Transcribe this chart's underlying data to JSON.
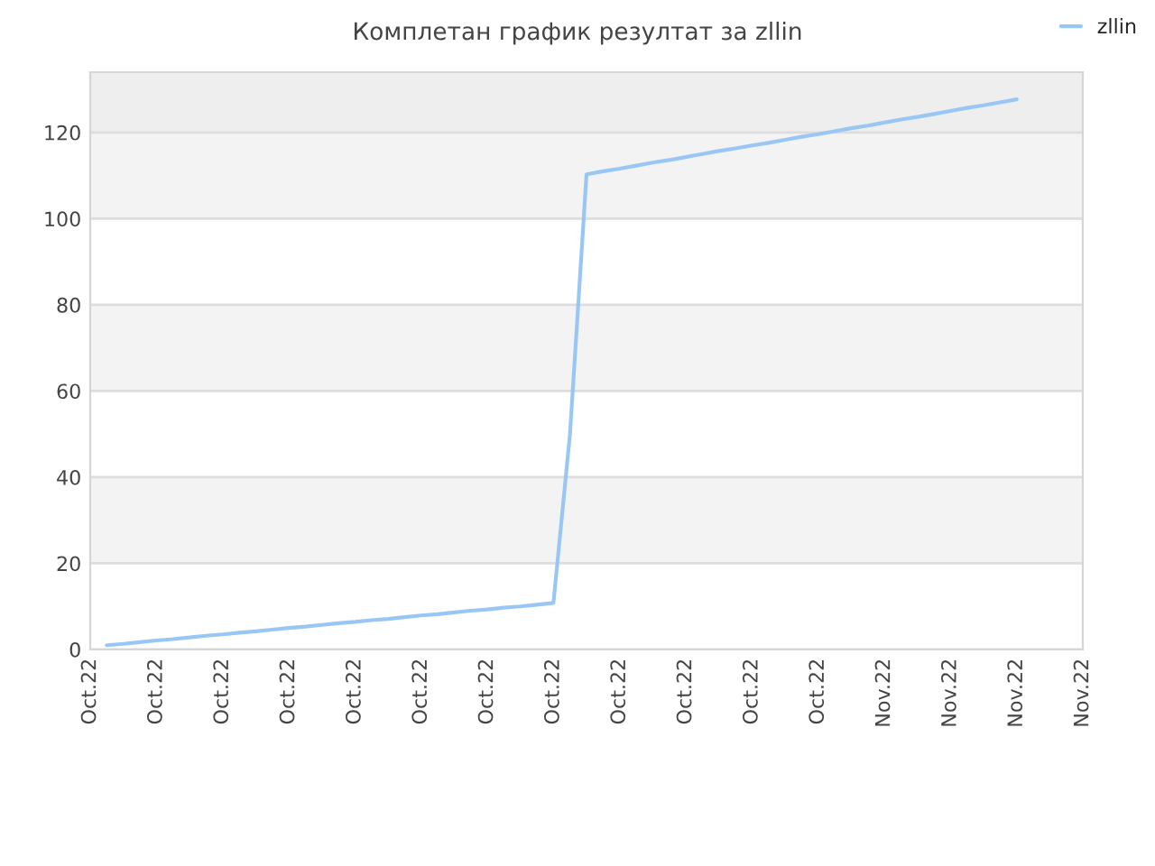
{
  "chart_data": {
    "type": "line",
    "title": "Комплетан график резултат за zllin",
    "categories": [
      "Oct.22",
      null,
      null,
      null,
      "Oct.22",
      null,
      null,
      null,
      "Oct.22",
      null,
      null,
      null,
      "Oct.22",
      null,
      null,
      null,
      "Oct.22",
      null,
      null,
      null,
      "Oct.22",
      null,
      null,
      null,
      "Oct.22",
      null,
      null,
      null,
      "Oct.22",
      null,
      null,
      null,
      "Oct.22",
      null,
      null,
      null,
      "Oct.22",
      null,
      null,
      null,
      "Oct.22",
      null,
      null,
      null,
      "Oct.22",
      null,
      null,
      null,
      "Nov.22",
      null,
      null,
      null,
      "Nov.22",
      null,
      null,
      null,
      "Nov.22",
      null,
      null,
      null,
      "Nov.22"
    ],
    "ylim": [
      0,
      134
    ],
    "yticks": [
      0,
      20,
      40,
      60,
      80,
      100,
      120
    ],
    "series": [
      {
        "name": "zllin",
        "color": "#99c7f5",
        "values": [
          null,
          1,
          1.3,
          1.7,
          2.1,
          2.4,
          2.8,
          3.2,
          3.5,
          3.9,
          4.2,
          4.6,
          5.0,
          5.3,
          5.7,
          6.1,
          6.4,
          6.8,
          7.1,
          7.5,
          7.9,
          8.2,
          8.6,
          9.0,
          9.3,
          9.7,
          10.0,
          10.4,
          10.8,
          50,
          110.3,
          111,
          111.6,
          112.3,
          113,
          113.6,
          114.3,
          115,
          115.7,
          116.3,
          117,
          117.6,
          118.3,
          119,
          119.6,
          120.3,
          121,
          121.6,
          122.3,
          123,
          123.6,
          124.3,
          125,
          125.7,
          126.3,
          127,
          127.7,
          null,
          null,
          null,
          null
        ]
      }
    ],
    "bands": [
      {
        "axis": "y",
        "from": 20,
        "to": 40,
        "color": "#f3f3f3"
      },
      {
        "axis": "y",
        "from": 60,
        "to": 80,
        "color": "#f3f3f3"
      },
      {
        "axis": "y",
        "from": 100,
        "to": 120,
        "color": "#f3f3f3"
      },
      {
        "axis": "y",
        "from": 120,
        "to": 134,
        "color": "#eeeeee"
      }
    ],
    "grid": "y",
    "legend": "top right",
    "marker": "none",
    "line_style": "solid"
  }
}
